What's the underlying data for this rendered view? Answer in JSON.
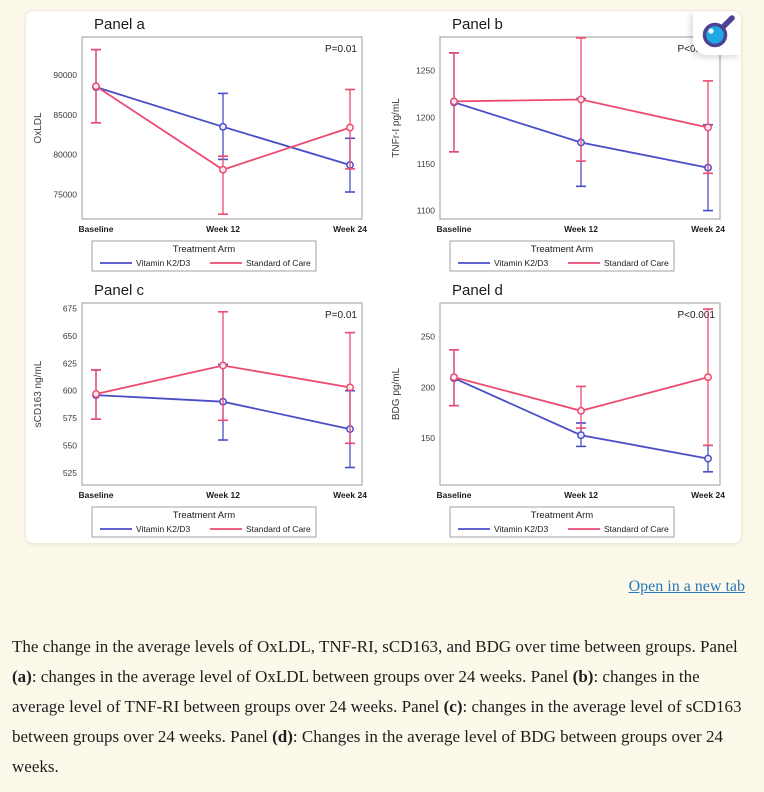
{
  "colors": {
    "page_bg": "#fdf9ea",
    "card_bg": "#ffffff",
    "blue": "#4a4ec9",
    "pink": "#ed4a70",
    "plot_border": "#9b9b9b",
    "title_color": "#1c1c1c",
    "tick_color": "#3a3a3a",
    "link_color": "#2879b9",
    "magnifier_fill": "#1fa9e4",
    "magnifier_stroke": "#4f4192"
  },
  "legend": {
    "title": "Treatment Arm",
    "items": [
      {
        "label": "Vitamin K2/D3",
        "color_key": "blue"
      },
      {
        "label": "Standard of Care",
        "color_key": "pink"
      }
    ]
  },
  "links": {
    "open_new_tab": "Open in a new tab"
  },
  "chart_data": [
    {
      "type": "line",
      "panel": "a",
      "title": "Panel a",
      "pvalue": "P=0.01",
      "ylabel": "OxLDL",
      "x": [
        "Baseline",
        "Week 12",
        "Week 24"
      ],
      "yticks": [
        75000,
        80000,
        85000,
        90000
      ],
      "ylim": [
        71900,
        94800
      ],
      "series": [
        {
          "name": "Vitamin K2/D3",
          "color_key": "blue",
          "values": [
            88500,
            83500,
            78700
          ],
          "err_lo": [
            84000,
            79400,
            75300
          ],
          "err_hi": [
            93200,
            87700,
            82050
          ]
        },
        {
          "name": "Standard of Care",
          "color_key": "pink",
          "values": [
            88600,
            78100,
            83400
          ],
          "err_lo": [
            84000,
            72500,
            78200
          ],
          "err_hi": [
            93200,
            79800,
            88200
          ]
        }
      ]
    },
    {
      "type": "line",
      "panel": "b",
      "title": "Panel b",
      "pvalue": "P<0.001",
      "ylabel": "TNFr-I pg/mL",
      "x": [
        "Baseline",
        "Week 12",
        "Week 24"
      ],
      "yticks": [
        1100,
        1150,
        1200,
        1250
      ],
      "ylim": [
        1091,
        1286
      ],
      "series": [
        {
          "name": "Vitamin K2/D3",
          "color_key": "blue",
          "values": [
            1216,
            1173,
            1146
          ],
          "err_lo": [
            1163,
            1126,
            1100
          ],
          "err_hi": [
            1269,
            1220,
            1192
          ]
        },
        {
          "name": "Standard of Care",
          "color_key": "pink",
          "values": [
            1217,
            1219,
            1189
          ],
          "err_lo": [
            1163,
            1153,
            1140
          ],
          "err_hi": [
            1269,
            1285,
            1239
          ]
        }
      ]
    },
    {
      "type": "line",
      "panel": "c",
      "title": "Panel c",
      "pvalue": "P=0.01",
      "ylabel": "sCD163 ng/mL",
      "x": [
        "Baseline",
        "Week 12",
        "Week 24"
      ],
      "yticks": [
        525,
        550,
        575,
        600,
        625,
        650,
        675
      ],
      "ylim": [
        514,
        680
      ],
      "series": [
        {
          "name": "Vitamin K2/D3",
          "color_key": "blue",
          "values": [
            596,
            590,
            565
          ],
          "err_lo": [
            574,
            555,
            530
          ],
          "err_hi": [
            619,
            624,
            600
          ]
        },
        {
          "name": "Standard of Care",
          "color_key": "pink",
          "values": [
            597,
            623,
            603
          ],
          "err_lo": [
            574,
            573,
            552
          ],
          "err_hi": [
            619,
            672,
            653
          ]
        }
      ]
    },
    {
      "type": "line",
      "panel": "d",
      "title": "Panel d",
      "pvalue": "P<0.001",
      "ylabel": "BDG pg/mL",
      "x": [
        "Baseline",
        "Week 12",
        "Week 24"
      ],
      "yticks": [
        150,
        200,
        250
      ],
      "ylim": [
        104,
        283
      ],
      "series": [
        {
          "name": "Vitamin K2/D3",
          "color_key": "blue",
          "values": [
            209,
            153,
            130
          ],
          "err_lo": [
            182,
            142,
            117
          ],
          "err_hi": [
            237,
            165,
            143
          ]
        },
        {
          "name": "Standard of Care",
          "color_key": "pink",
          "values": [
            210,
            177,
            210
          ],
          "err_lo": [
            182,
            160,
            143
          ],
          "err_hi": [
            237,
            201,
            277
          ]
        }
      ]
    }
  ],
  "caption": {
    "segments": [
      {
        "text": "The change in the average levels of OxLDL, TNF-RI, sCD163, and BDG over time between groups. Panel ",
        "bold": false
      },
      {
        "text": "(a)",
        "bold": true
      },
      {
        "text": ": changes in the average level of OxLDL between groups over 24 weeks. Panel ",
        "bold": false
      },
      {
        "text": "(b)",
        "bold": true
      },
      {
        "text": ": changes in the average level of TNF-RI between groups over 24 weeks. Panel ",
        "bold": false
      },
      {
        "text": "(c)",
        "bold": true
      },
      {
        "text": ": changes in the average level of sCD163 between groups over 24 weeks. Panel ",
        "bold": false
      },
      {
        "text": "(d)",
        "bold": true
      },
      {
        "text": ": Changes in the average level of BDG between groups over 24 weeks.",
        "bold": false
      }
    ]
  }
}
